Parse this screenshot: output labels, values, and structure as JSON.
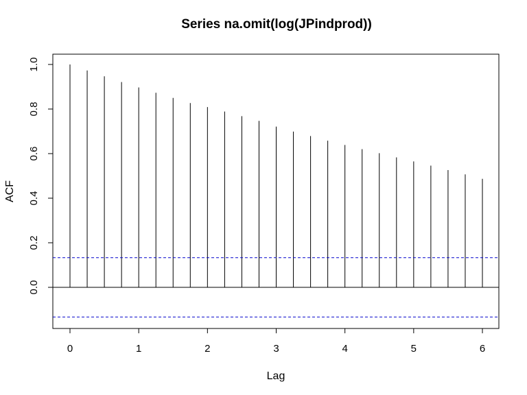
{
  "chart_data": {
    "type": "bar",
    "title": "Series  na.omit(log(JPindprod))",
    "xlabel": "Lag",
    "ylabel": "ACF",
    "x": [
      0,
      0.25,
      0.5,
      0.75,
      1,
      1.25,
      1.5,
      1.75,
      2,
      2.25,
      2.5,
      2.75,
      3,
      3.25,
      3.5,
      3.75,
      4,
      4.25,
      4.5,
      4.75,
      5,
      5.25,
      5.5,
      5.75,
      6
    ],
    "values": [
      1.0,
      0.973,
      0.947,
      0.921,
      0.897,
      0.873,
      0.85,
      0.827,
      0.809,
      0.789,
      0.768,
      0.747,
      0.721,
      0.699,
      0.679,
      0.658,
      0.639,
      0.62,
      0.602,
      0.583,
      0.565,
      0.546,
      0.526,
      0.507,
      0.487
    ],
    "confidence_bound": 0.133,
    "xlim": [
      0,
      6
    ],
    "ylim": [
      -0.18,
      1.0
    ],
    "xticks": [
      "0",
      "1",
      "2",
      "3",
      "4",
      "5",
      "6"
    ],
    "yticks": [
      "0.0",
      "0.2",
      "0.4",
      "0.6",
      "0.8",
      "1.0"
    ],
    "colors": {
      "spike": "#000000",
      "bound": "#0000cc",
      "zero_line": "#000000"
    }
  }
}
